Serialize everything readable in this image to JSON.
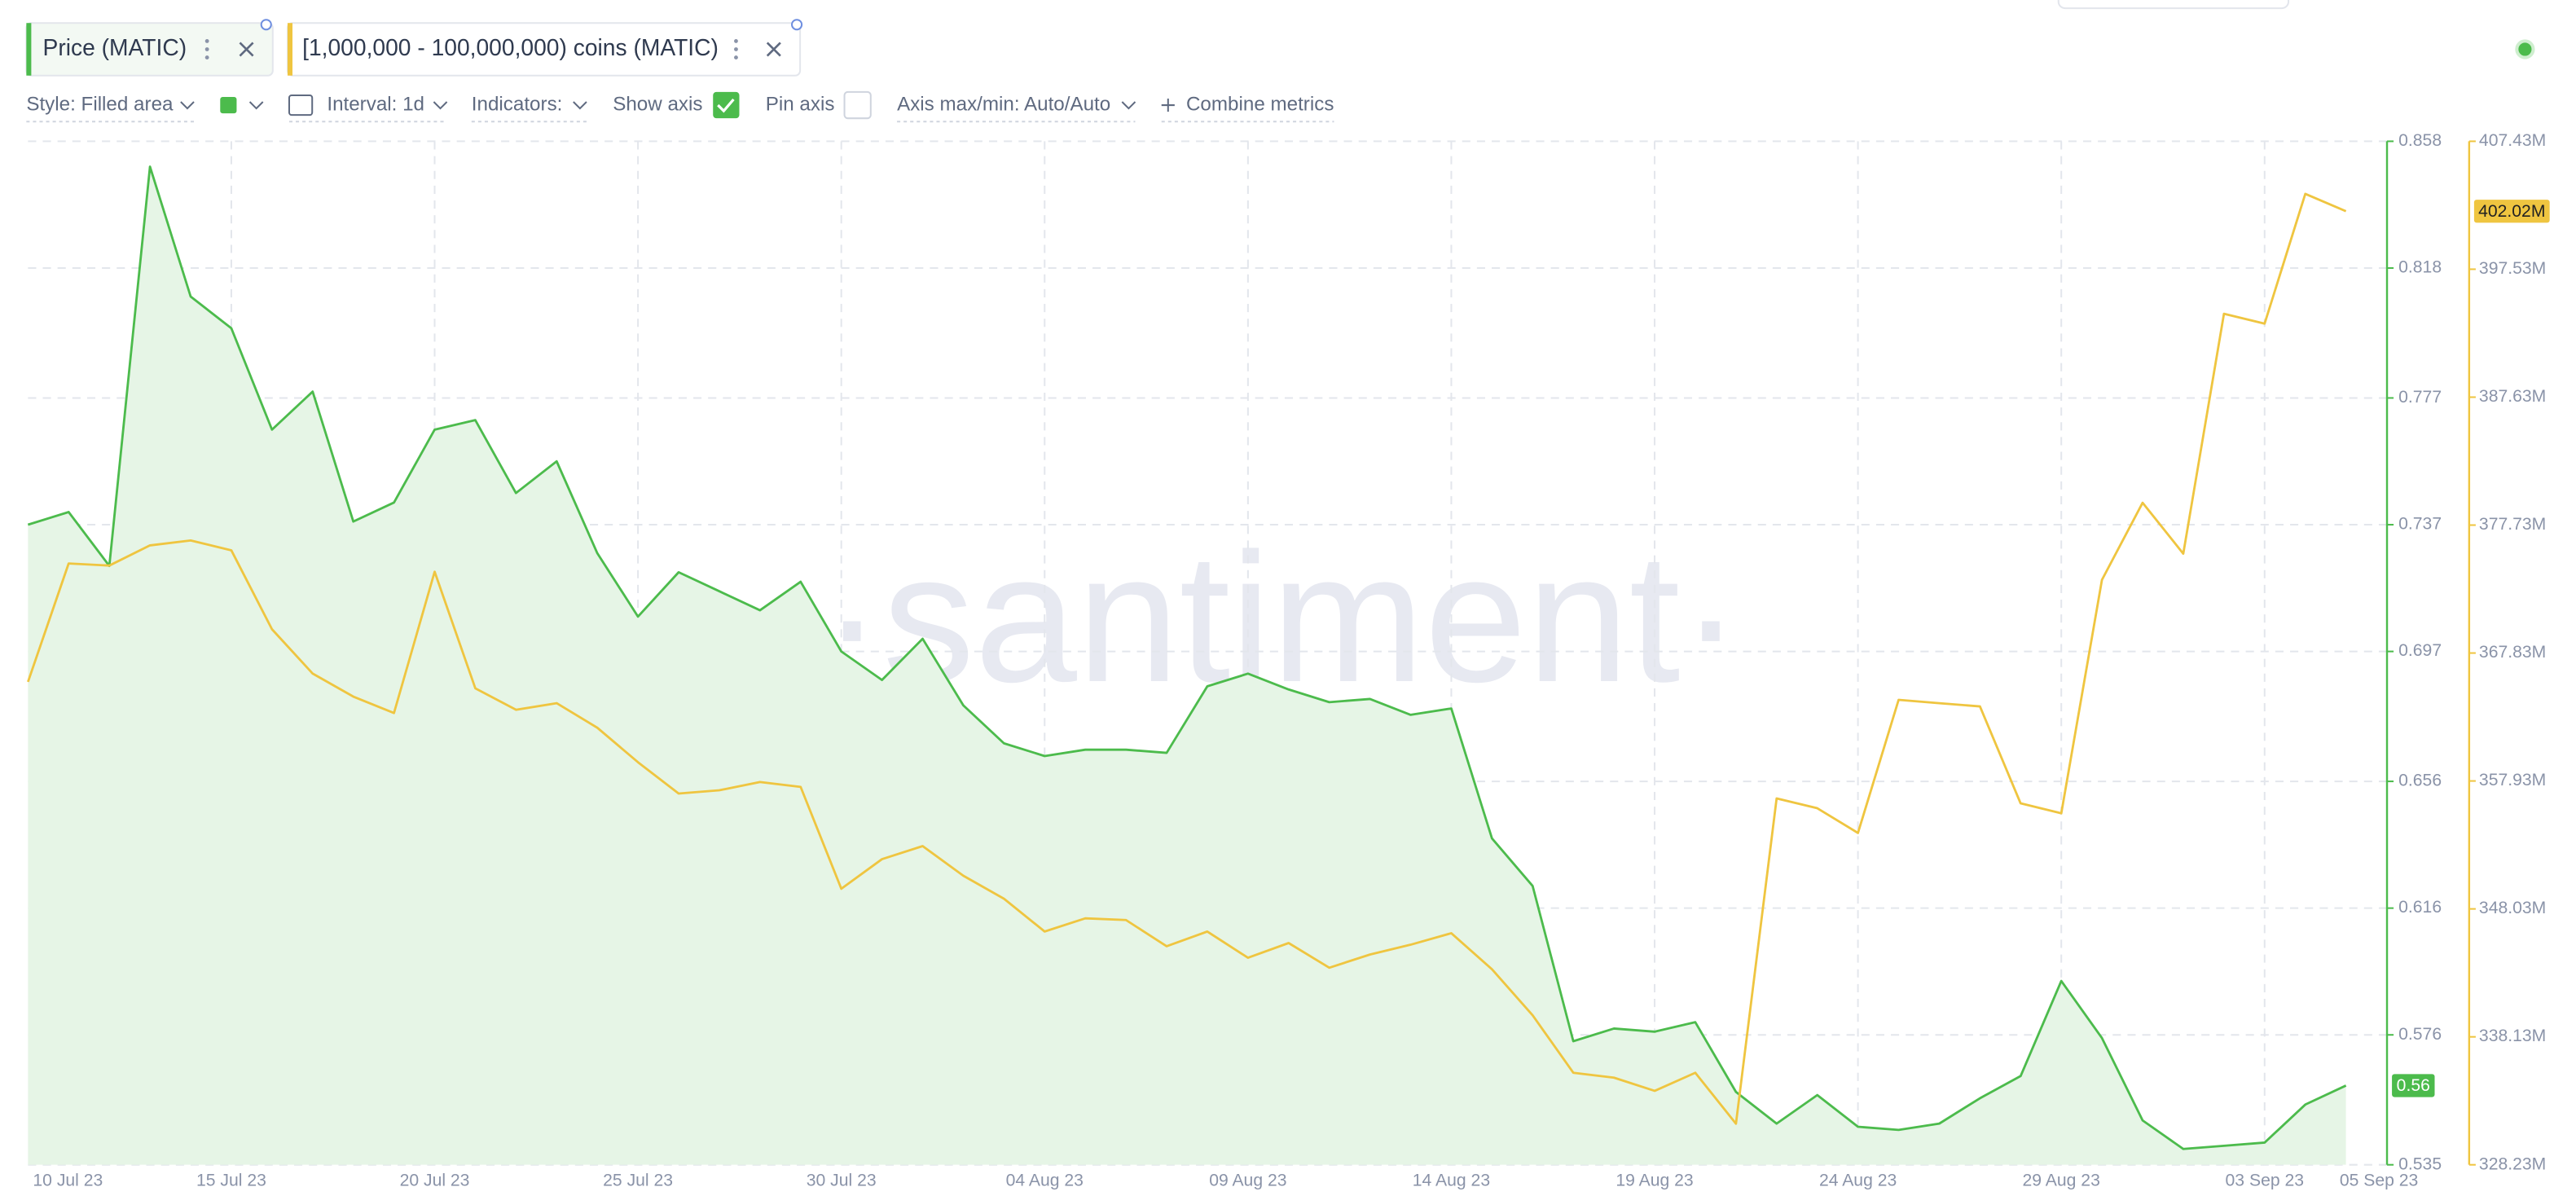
{
  "chart_data": {
    "type": "line",
    "watermark": "·santiment·",
    "categories": [
      "10 Jul 23",
      null,
      null,
      null,
      null,
      "15 Jul 23",
      null,
      null,
      null,
      null,
      "20 Jul 23",
      null,
      null,
      null,
      null,
      "25 Jul 23",
      null,
      null,
      null,
      null,
      "30 Jul 23",
      null,
      null,
      null,
      null,
      "04 Aug 23",
      null,
      null,
      null,
      null,
      "09 Aug 23",
      null,
      null,
      null,
      null,
      "14 Aug 23",
      null,
      null,
      null,
      null,
      "19 Aug 23",
      null,
      null,
      null,
      null,
      "24 Aug 23",
      null,
      null,
      null,
      null,
      "29 Aug 23",
      null,
      null,
      null,
      null,
      "03 Sep 23",
      null,
      "05 Sep 23"
    ],
    "series": [
      {
        "name": "Price (MATIC)",
        "color": "#4cbb4c",
        "fill": "#e6f5e6",
        "style": "Filled area",
        "values": [
          0.737,
          0.741,
          0.724,
          0.85,
          0.809,
          0.799,
          0.767,
          0.779,
          0.738,
          0.744,
          0.767,
          0.77,
          0.747,
          0.757,
          0.728,
          0.708,
          0.722,
          0.716,
          0.71,
          0.719,
          0.697,
          0.688,
          0.701,
          0.68,
          0.668,
          0.664,
          0.666,
          0.666,
          0.665,
          0.686,
          0.69,
          0.685,
          0.681,
          0.682,
          0.677,
          0.679,
          0.638,
          0.623,
          0.574,
          0.578,
          0.577,
          0.58,
          0.558,
          0.548,
          0.557,
          0.547,
          0.546,
          0.548,
          0.556,
          0.563,
          0.593,
          0.575,
          0.549,
          0.54,
          0.541,
          0.542,
          0.554,
          0.56
        ]
      },
      {
        "name": "[1,000,000 - 100,000,000) coins (MATIC)",
        "color": "#efc540",
        "axis": "y2",
        "values": [
          365.6,
          374.76,
          374.6,
          376.16,
          376.54,
          375.78,
          369.67,
          366.24,
          364.46,
          363.19,
          374.12,
          365.1,
          363.44,
          363.95,
          362.05,
          359.38,
          356.96,
          357.21,
          357.85,
          357.47,
          349.59,
          351.88,
          352.89,
          350.6,
          348.82,
          346.28,
          347.3,
          347.17,
          345.14,
          346.28,
          344.25,
          345.39,
          343.48,
          344.5,
          345.26,
          346.15,
          343.36,
          339.8,
          335.35,
          334.97,
          333.95,
          335.35,
          331.41,
          356.58,
          355.82,
          353.91,
          364.21,
          363.95,
          363.7,
          356.2,
          355.43,
          373.49,
          379.46,
          375.52,
          394.08,
          393.32,
          403.36,
          402.02
        ],
        "value_labels": [
          null,
          null,
          null,
          null,
          null,
          null,
          null,
          null,
          null,
          null,
          null,
          null,
          null,
          null,
          null,
          null,
          null,
          null,
          null,
          null,
          null,
          null,
          null,
          null,
          null,
          null,
          null,
          null,
          null,
          null,
          null,
          null,
          null,
          null,
          null,
          null,
          null,
          null,
          null,
          null,
          null,
          null,
          null,
          null,
          null,
          null,
          null,
          null,
          null,
          null,
          null,
          null,
          null,
          null,
          null,
          null,
          null,
          "402.02M"
        ]
      }
    ],
    "ylim": [
      0.535,
      0.858
    ],
    "yticks": [
      0.858,
      0.818,
      0.777,
      0.737,
      0.697,
      0.656,
      0.616,
      0.576,
      0.535
    ],
    "y2lim": [
      328.23,
      407.43
    ],
    "y2ticks": [
      {
        "value": 407.43,
        "label": "407.43M"
      },
      {
        "value": 397.53,
        "label": "397.53M"
      },
      {
        "value": 387.63,
        "label": "387.63M"
      },
      {
        "value": 377.73,
        "label": "377.73M"
      },
      {
        "value": 367.83,
        "label": "367.83M"
      },
      {
        "value": 357.93,
        "label": "357.93M"
      },
      {
        "value": 348.03,
        "label": "348.03M"
      },
      {
        "value": 338.13,
        "label": "338.13M"
      },
      {
        "value": 328.23,
        "label": "328.23M"
      }
    ],
    "grid": true
  },
  "toolbar": {
    "style": "Style: Filled area",
    "interval": "Interval: 1d",
    "indicators": "Indicators:",
    "show_axis": "Show axis",
    "pin_axis": "Pin axis",
    "axis_minmax": "Axis max/min: Auto/Auto",
    "combine": "Combine metrics"
  }
}
